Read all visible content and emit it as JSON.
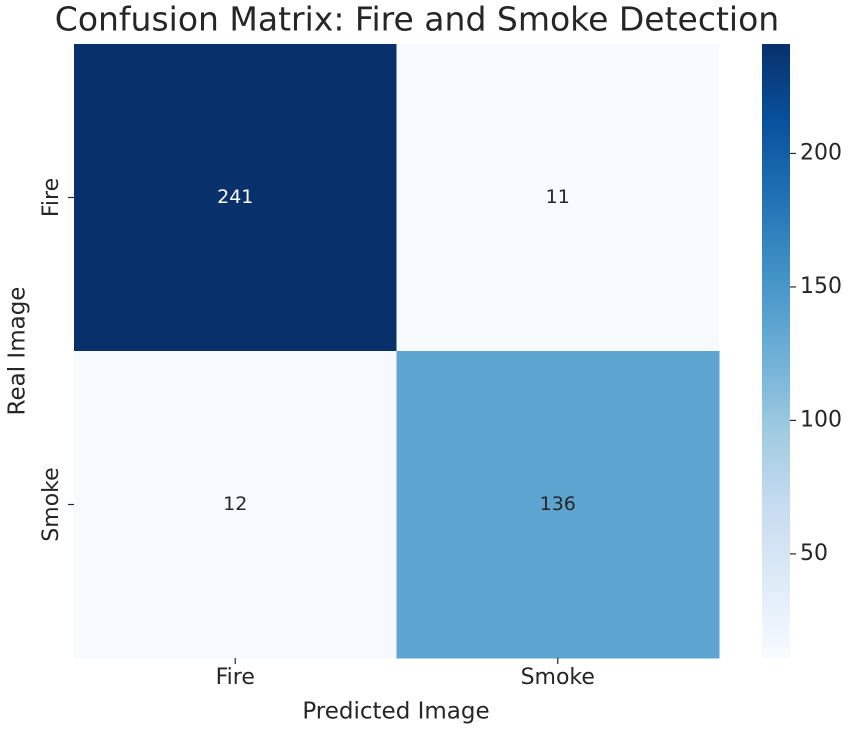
{
  "chart_data": {
    "type": "heatmap",
    "title": "Confusion Matrix: Fire and Smoke Detection",
    "xlabel": "Predicted Image",
    "ylabel": "Real Image",
    "x_categories": [
      "Fire",
      "Smoke"
    ],
    "y_categories": [
      "Fire",
      "Smoke"
    ],
    "values": [
      [
        241,
        11
      ],
      [
        12,
        136
      ]
    ],
    "colormap": "Blues",
    "clim": [
      11,
      241
    ],
    "cticks": [
      50,
      100,
      150,
      200
    ]
  }
}
